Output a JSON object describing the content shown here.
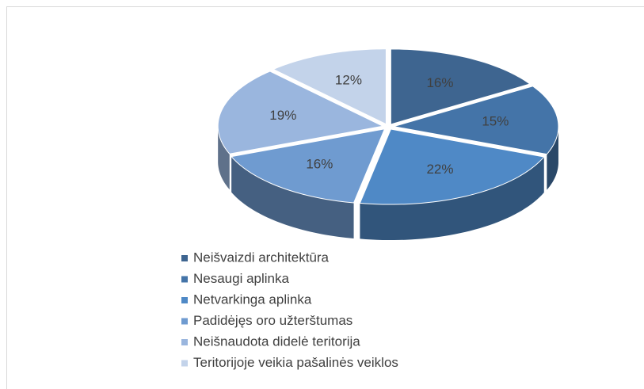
{
  "chart_data": {
    "type": "pie",
    "categories": [
      "Neišvaizdi architektūra",
      "Nesaugi aplinka",
      "Netvarkinga aplinka",
      "Padidėjęs oro užterštumas",
      "Neišnaudota didelė teritorija",
      "Teritorijoje veikia pašalinės veiklos"
    ],
    "values": [
      16,
      15,
      22,
      16,
      19,
      12
    ],
    "value_labels": [
      "16%",
      "15%",
      "22%",
      "16%",
      "19%",
      "12%"
    ],
    "colors": [
      "#3e6590",
      "#4474a8",
      "#4f89c6",
      "#6f9bd0",
      "#9ab6de",
      "#c3d3ea"
    ],
    "legend": "bottom-left"
  }
}
